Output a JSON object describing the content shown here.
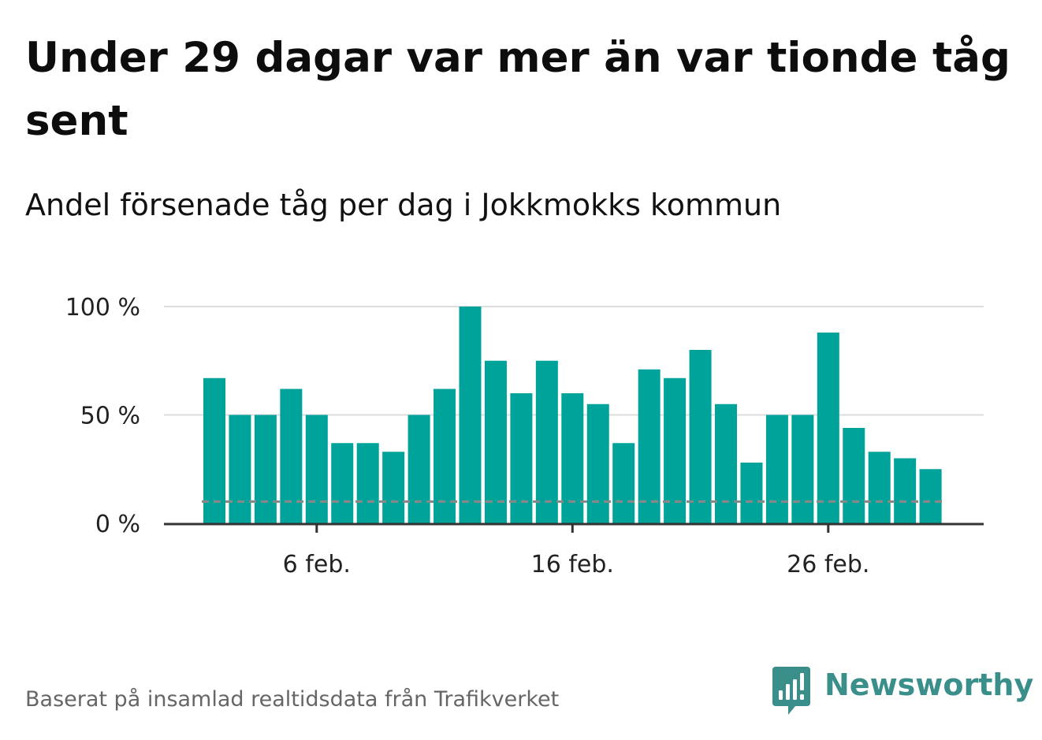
{
  "title": "Under 29 dagar var mer än var tionde tåg sent",
  "subtitle": "Andel försenade tåg per dag i Jokkmokks kommun",
  "source": "Baserat på insamlad realtidsdata från Trafikverket",
  "brand": {
    "name": "Newsworthy",
    "color": "#3a8f8a",
    "icon": "newsworthy-logo-icon"
  },
  "colors": {
    "bar": "#00a39a",
    "grid": "#dddddd",
    "axis": "#333333",
    "threshold": "#888888"
  },
  "chart_data": {
    "type": "bar",
    "title": "Under 29 dagar var mer än var tionde tåg sent",
    "subtitle": "Andel försenade tåg per dag i Jokkmokks kommun",
    "xlabel": "",
    "ylabel": "",
    "x_dates": [
      "2 feb.",
      "3 feb.",
      "4 feb.",
      "5 feb.",
      "6 feb.",
      "7 feb.",
      "8 feb.",
      "9 feb.",
      "10 feb.",
      "11 feb.",
      "12 feb.",
      "13 feb.",
      "14 feb.",
      "15 feb.",
      "16 feb.",
      "17 feb.",
      "18 feb.",
      "19 feb.",
      "20 feb.",
      "21 feb.",
      "22 feb.",
      "23 feb.",
      "24 feb.",
      "25 feb.",
      "26 feb.",
      "27 feb.",
      "28 feb.",
      "29 feb.",
      "1 mar."
    ],
    "values": [
      67,
      50,
      50,
      62,
      50,
      37,
      37,
      33,
      50,
      62,
      100,
      75,
      60,
      75,
      60,
      55,
      37,
      71,
      67,
      80,
      55,
      28,
      50,
      50,
      88,
      44,
      33,
      30,
      25
    ],
    "unit": "%",
    "ylim": [
      0,
      100
    ],
    "yticks": [
      0,
      50,
      100
    ],
    "ytick_labels": [
      "0 %",
      "50 %",
      "100 %"
    ],
    "xtick_labels": [
      "6 feb.",
      "16 feb.",
      "26 feb."
    ],
    "threshold": 10,
    "grid": true,
    "legend": "none"
  }
}
